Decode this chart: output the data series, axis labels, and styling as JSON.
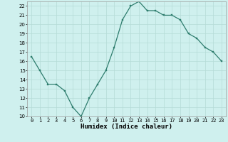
{
  "x": [
    0,
    1,
    2,
    3,
    4,
    5,
    6,
    7,
    8,
    9,
    10,
    11,
    12,
    13,
    14,
    15,
    16,
    17,
    18,
    19,
    20,
    21,
    22,
    23
  ],
  "y": [
    16.5,
    15.0,
    13.5,
    13.5,
    12.8,
    11.0,
    10.0,
    12.0,
    13.5,
    15.0,
    17.5,
    20.5,
    22.0,
    22.5,
    21.5,
    21.5,
    21.0,
    21.0,
    20.5,
    19.0,
    18.5,
    17.5,
    17.0,
    16.0
  ],
  "xlabel": "Humidex (Indice chaleur)",
  "line_color": "#2e7d6e",
  "marker_color": "#2e7d6e",
  "bg_color": "#cff0ee",
  "grid_color": "#b5dbd7",
  "xlim": [
    -0.5,
    23.5
  ],
  "ylim": [
    10,
    22.5
  ],
  "yticks": [
    10,
    11,
    12,
    13,
    14,
    15,
    16,
    17,
    18,
    19,
    20,
    21,
    22
  ],
  "xticks": [
    0,
    1,
    2,
    3,
    4,
    5,
    6,
    7,
    8,
    9,
    10,
    11,
    12,
    13,
    14,
    15,
    16,
    17,
    18,
    19,
    20,
    21,
    22,
    23
  ],
  "tick_fontsize": 5.0,
  "xlabel_fontsize": 6.5,
  "marker_size": 2.0,
  "line_width": 0.9
}
